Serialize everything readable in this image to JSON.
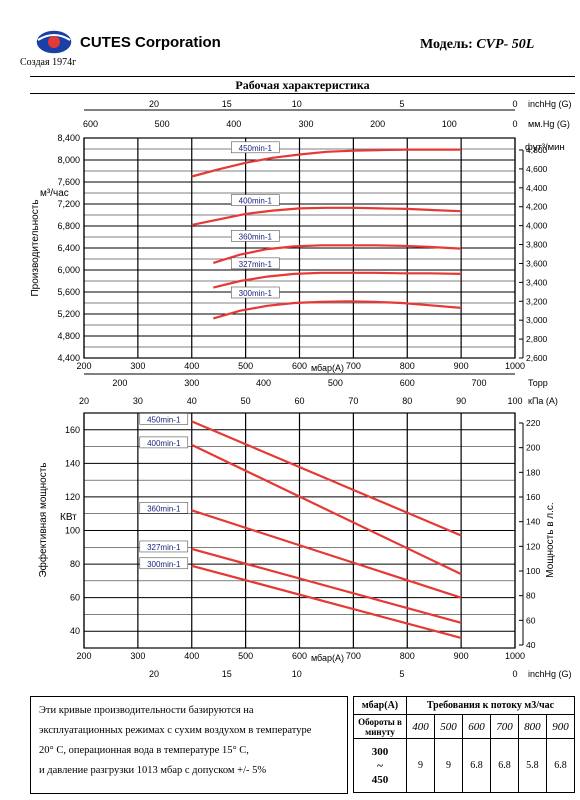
{
  "header": {
    "company": "CUTES Corporation",
    "since": "Создая 1974г",
    "model_label": "Модель:",
    "model_value": "CVP- 50L",
    "section_title": "Рабочая характеристика"
  },
  "colors": {
    "curve": "#e53935",
    "grid": "#000000",
    "logo_blue": "#1a3fa6",
    "logo_red": "#e53935"
  },
  "icons": {
    "logo": "globe-logo-icon"
  },
  "chart_data": [
    {
      "type": "line",
      "title": "",
      "xlabel": "мбар(A)",
      "ylabel": "Производительность м³/час",
      "y2label": "фут³/мин",
      "x_ticks": [
        200,
        300,
        400,
        500,
        600,
        700,
        800,
        900,
        1000
      ],
      "xlim": [
        200,
        1000
      ],
      "ylim": [
        4400,
        8400
      ],
      "y_ticks": [
        "4,400",
        "4,800",
        "5,200",
        "5,600",
        "6,000",
        "6,400",
        "6,800",
        "7,200",
        "7,600",
        "8,000",
        "8,400"
      ],
      "y2_ticks": [
        "2,600",
        "2,800",
        "3,000",
        "3,200",
        "3,400",
        "3,600",
        "3,800",
        "4,000",
        "4,200",
        "4,400",
        "4,600",
        "4,800"
      ],
      "top_inhg": {
        "label": "inchHg (G)",
        "ticks": [
          "20",
          "15",
          "10",
          "5",
          "0"
        ]
      },
      "top_mmhg": {
        "label": "мм.Hg (G)",
        "ticks": [
          "600",
          "500",
          "400",
          "300",
          "200",
          "100",
          "0"
        ]
      },
      "series": [
        {
          "name": "450min-1",
          "x": [
            400,
            450,
            500,
            550,
            600,
            650,
            700,
            750,
            800,
            850,
            900
          ],
          "values": [
            7700,
            7830,
            7950,
            8040,
            8100,
            8150,
            8170,
            8180,
            8190,
            8190,
            8190
          ]
        },
        {
          "name": "400min-1",
          "x": [
            400,
            450,
            500,
            550,
            600,
            650,
            700,
            750,
            800,
            850,
            900
          ],
          "values": [
            6820,
            6920,
            7020,
            7080,
            7120,
            7130,
            7130,
            7120,
            7110,
            7090,
            7070
          ]
        },
        {
          "name": "360min-1",
          "x": [
            440,
            490,
            540,
            590,
            640,
            690,
            740,
            790,
            840,
            900
          ],
          "values": [
            6130,
            6280,
            6380,
            6430,
            6450,
            6450,
            6450,
            6440,
            6420,
            6390
          ]
        },
        {
          "name": "327min-1",
          "x": [
            440,
            490,
            540,
            590,
            640,
            690,
            740,
            790,
            840,
            900
          ],
          "values": [
            5680,
            5800,
            5880,
            5930,
            5950,
            5950,
            5950,
            5940,
            5940,
            5930
          ]
        },
        {
          "name": "300min-1",
          "x": [
            440,
            490,
            540,
            590,
            640,
            690,
            740,
            790,
            840,
            900
          ],
          "values": [
            5120,
            5260,
            5350,
            5400,
            5420,
            5430,
            5420,
            5400,
            5360,
            5310
          ]
        }
      ]
    },
    {
      "type": "line",
      "title": "",
      "xlabel": "мбар(A)",
      "ylabel": "Эффективная мощность КВт",
      "y2label": "Мощность в л.с.",
      "x_ticks": [
        200,
        300,
        400,
        500,
        600,
        700,
        800,
        900,
        1000
      ],
      "xlim": [
        200,
        1000
      ],
      "ylim": [
        30,
        170
      ],
      "y_ticks": [
        "40",
        "60",
        "80",
        "100",
        "120",
        "140",
        "160"
      ],
      "y2_ticks": [
        "40",
        "60",
        "80",
        "100",
        "120",
        "140",
        "160",
        "180",
        "200",
        "220"
      ],
      "top_torr": {
        "label": "Торр",
        "ticks": [
          "200",
          "300",
          "400",
          "500",
          "600",
          "700"
        ]
      },
      "top_kpa": {
        "label": "кПа (A)",
        "ticks": [
          "20",
          "30",
          "40",
          "50",
          "60",
          "70",
          "80",
          "90",
          "100"
        ]
      },
      "bottom_inhg": {
        "label": "inchHg (G)",
        "ticks": [
          "20",
          "15",
          "10",
          "5",
          "0"
        ]
      },
      "series": [
        {
          "name": "450min-1",
          "x": [
            400,
            900
          ],
          "values": [
            165,
            97
          ]
        },
        {
          "name": "400min-1",
          "x": [
            400,
            900
          ],
          "values": [
            151,
            74
          ]
        },
        {
          "name": "360min-1",
          "x": [
            400,
            900
          ],
          "values": [
            112,
            60
          ]
        },
        {
          "name": "327min-1",
          "x": [
            400,
            900
          ],
          "values": [
            89,
            45
          ]
        },
        {
          "name": "300min-1",
          "x": [
            400,
            900
          ],
          "values": [
            79,
            36
          ]
        }
      ]
    }
  ],
  "note": {
    "lines": [
      "Эти кривые производительности базируются на",
      "эксплуатационных режимах с сухим воздухом в температуре",
      "20° С, операционная вода в температуре 15° С,",
      "и давление разгрузки 1013 мбар с допуском +/- 5%"
    ]
  },
  "req_table": {
    "col1_header": "мбар(A)",
    "flow_header": "Требования к потоку м3/час",
    "row_label": "Обороты в минуту",
    "columns": [
      "400",
      "500",
      "600",
      "700",
      "800",
      "900"
    ],
    "speed_top": "300",
    "speed_mid": "~",
    "speed_bottom": "450",
    "values": [
      "9",
      "9",
      "6.8",
      "6.8",
      "5.8",
      "6.8"
    ]
  }
}
